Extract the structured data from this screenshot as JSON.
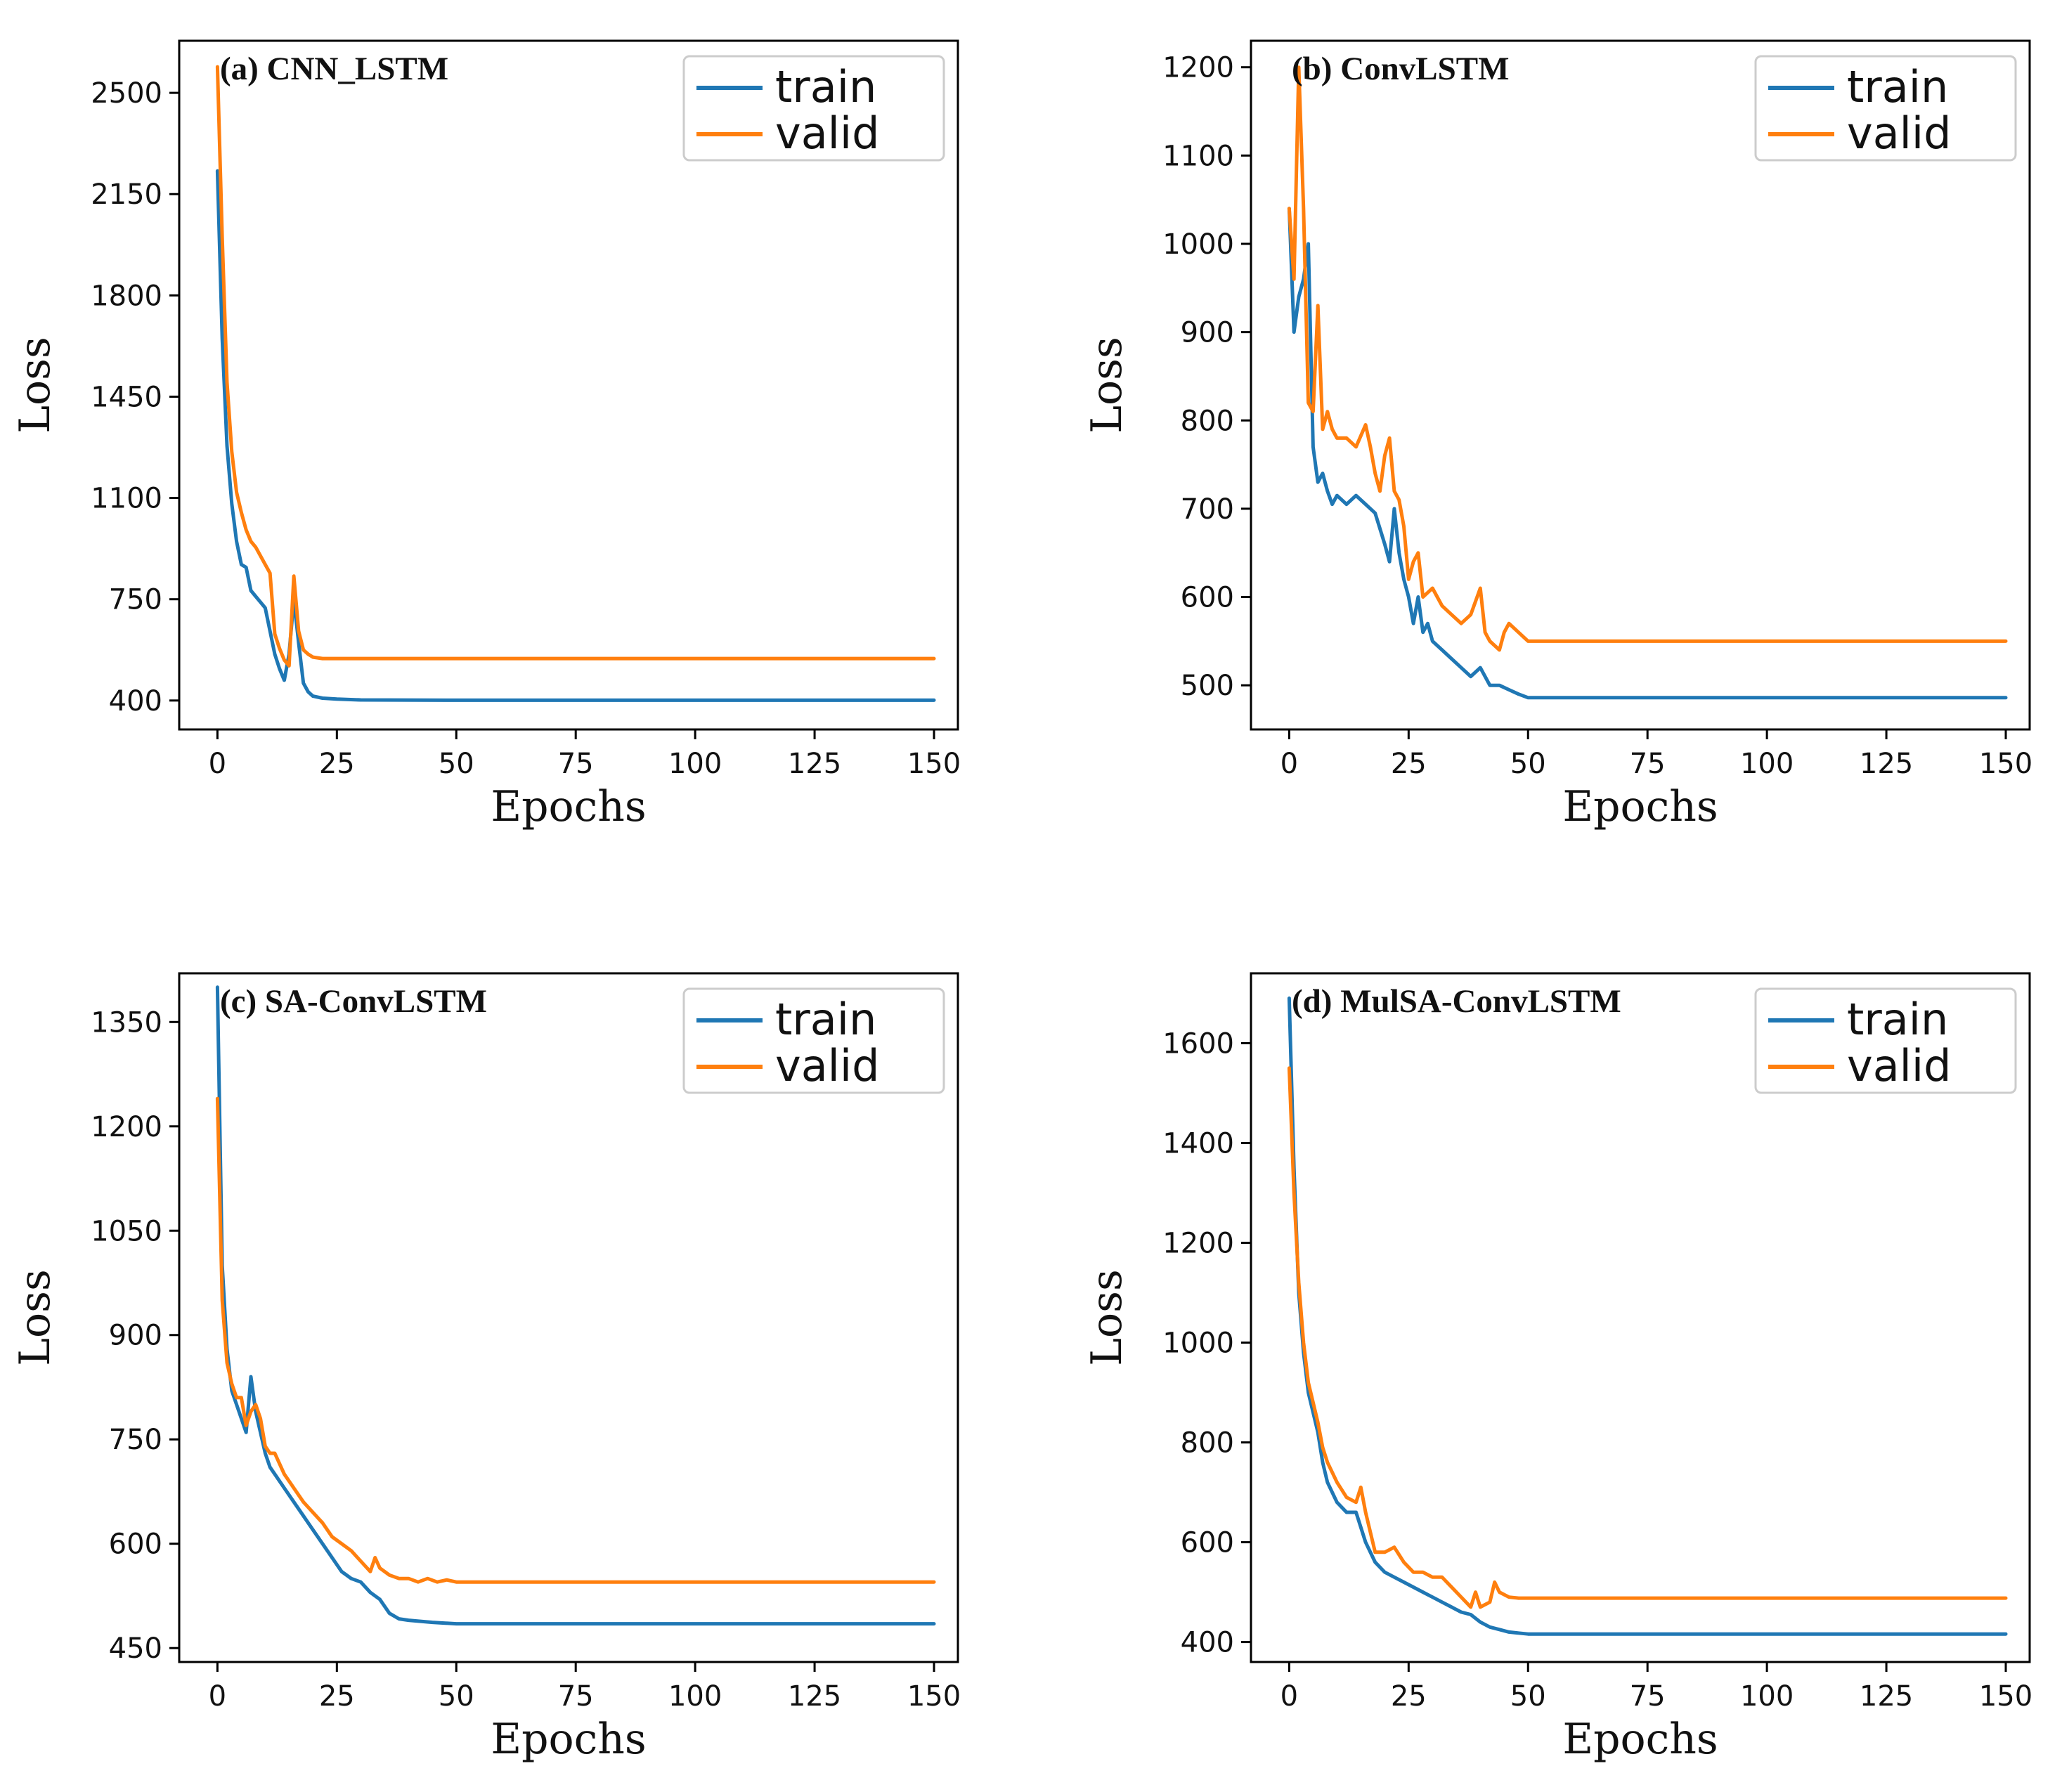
{
  "colors": {
    "train": "#1f77b4",
    "valid": "#ff7f0e"
  },
  "chart_data": [
    {
      "type": "line",
      "title": "(a) CNN_LSTM",
      "xlabel": "Epochs",
      "ylabel": "Loss",
      "xlim": [
        -8,
        155
      ],
      "ylim": [
        300,
        2680
      ],
      "xticks": [
        0,
        25,
        50,
        75,
        100,
        125,
        150
      ],
      "yticks": [
        400,
        750,
        1100,
        1450,
        1800,
        2150,
        2500
      ],
      "legend": "top-right",
      "grid": false,
      "series": [
        {
          "name": "train",
          "color": "#1f77b4",
          "x": [
            0,
            1,
            2,
            3,
            4,
            5,
            6,
            7,
            8,
            9,
            10,
            11,
            12,
            13,
            14,
            15,
            16,
            17,
            18,
            19,
            20,
            22,
            25,
            30,
            50,
            100,
            150
          ],
          "y": [
            2230,
            1650,
            1280,
            1080,
            950,
            870,
            860,
            780,
            760,
            740,
            720,
            640,
            560,
            510,
            470,
            560,
            750,
            600,
            460,
            430,
            415,
            408,
            405,
            402,
            401,
            401,
            401
          ]
        },
        {
          "name": "valid",
          "color": "#ff7f0e",
          "x": [
            0,
            1,
            2,
            3,
            4,
            5,
            6,
            7,
            8,
            9,
            10,
            11,
            12,
            13,
            14,
            15,
            16,
            17,
            18,
            19,
            20,
            22,
            25,
            30,
            50,
            100,
            150
          ],
          "y": [
            2590,
            2000,
            1500,
            1260,
            1120,
            1050,
            990,
            950,
            930,
            900,
            870,
            840,
            630,
            580,
            540,
            520,
            830,
            640,
            575,
            560,
            550,
            545,
            545,
            545,
            545,
            545,
            545
          ]
        }
      ]
    },
    {
      "type": "line",
      "title": "(b) ConvLSTM",
      "xlabel": "Epochs",
      "ylabel": "Loss",
      "xlim": [
        -8,
        155
      ],
      "ylim": [
        450,
        1230
      ],
      "xticks": [
        0,
        25,
        50,
        75,
        100,
        125,
        150
      ],
      "yticks": [
        500,
        600,
        700,
        800,
        900,
        1000,
        1100,
        1200
      ],
      "legend": "top-right",
      "grid": false,
      "series": [
        {
          "name": "train",
          "color": "#1f77b4",
          "x": [
            0,
            1,
            2,
            3,
            4,
            5,
            6,
            7,
            8,
            9,
            10,
            12,
            14,
            16,
            18,
            20,
            21,
            22,
            23,
            24,
            25,
            26,
            27,
            28,
            29,
            30,
            32,
            34,
            36,
            38,
            40,
            42,
            44,
            46,
            48,
            50,
            52,
            60,
            100,
            150
          ],
          "y": [
            1040,
            900,
            940,
            960,
            1000,
            770,
            730,
            740,
            720,
            705,
            715,
            705,
            715,
            705,
            695,
            660,
            640,
            700,
            650,
            620,
            600,
            570,
            600,
            560,
            570,
            550,
            540,
            530,
            520,
            510,
            520,
            500,
            500,
            495,
            490,
            486,
            486,
            486,
            486,
            486
          ]
        },
        {
          "name": "valid",
          "color": "#ff7f0e",
          "x": [
            0,
            1,
            2,
            3,
            4,
            5,
            6,
            7,
            8,
            9,
            10,
            12,
            14,
            16,
            17,
            18,
            19,
            20,
            21,
            22,
            23,
            24,
            25,
            26,
            27,
            28,
            30,
            32,
            34,
            36,
            38,
            40,
            41,
            42,
            44,
            45,
            46,
            48,
            50,
            52,
            60,
            100,
            150
          ],
          "y": [
            1040,
            960,
            1200,
            1040,
            820,
            810,
            930,
            790,
            810,
            790,
            780,
            780,
            770,
            795,
            770,
            740,
            720,
            760,
            780,
            720,
            710,
            680,
            620,
            640,
            650,
            600,
            610,
            590,
            580,
            570,
            580,
            610,
            560,
            550,
            540,
            560,
            570,
            560,
            550,
            550,
            550,
            550,
            550
          ]
        }
      ]
    },
    {
      "type": "line",
      "title": "(c) SA-ConvLSTM",
      "xlabel": "Epochs",
      "ylabel": "Loss",
      "xlim": [
        -8,
        155
      ],
      "ylim": [
        430,
        1420
      ],
      "xticks": [
        0,
        25,
        50,
        75,
        100,
        125,
        150
      ],
      "yticks": [
        450,
        600,
        750,
        900,
        1050,
        1200,
        1350
      ],
      "legend": "top-right",
      "grid": false,
      "series": [
        {
          "name": "train",
          "color": "#1f77b4",
          "x": [
            0,
            1,
            2,
            3,
            4,
            5,
            6,
            7,
            8,
            9,
            10,
            11,
            12,
            14,
            16,
            18,
            20,
            22,
            24,
            26,
            28,
            30,
            32,
            34,
            36,
            38,
            40,
            45,
            50,
            60,
            100,
            150
          ],
          "y": [
            1400,
            1000,
            880,
            820,
            800,
            780,
            760,
            840,
            790,
            760,
            730,
            710,
            700,
            680,
            660,
            640,
            620,
            600,
            580,
            560,
            550,
            545,
            530,
            520,
            500,
            492,
            490,
            487,
            485,
            485,
            485,
            485
          ]
        },
        {
          "name": "valid",
          "color": "#ff7f0e",
          "x": [
            0,
            1,
            2,
            3,
            4,
            5,
            6,
            7,
            8,
            9,
            10,
            11,
            12,
            14,
            16,
            18,
            20,
            22,
            24,
            26,
            28,
            30,
            32,
            33,
            34,
            36,
            38,
            40,
            42,
            44,
            46,
            48,
            50,
            60,
            100,
            150
          ],
          "y": [
            1240,
            950,
            860,
            830,
            810,
            810,
            770,
            790,
            800,
            780,
            740,
            730,
            730,
            700,
            680,
            660,
            645,
            630,
            610,
            600,
            590,
            575,
            560,
            580,
            565,
            555,
            550,
            550,
            545,
            550,
            545,
            548,
            545,
            545,
            545,
            545
          ]
        }
      ]
    },
    {
      "type": "line",
      "title": "(d) MulSA-ConvLSTM",
      "xlabel": "Epochs",
      "ylabel": "Loss",
      "xlim": [
        -8,
        155
      ],
      "ylim": [
        360,
        1740
      ],
      "xticks": [
        0,
        25,
        50,
        75,
        100,
        125,
        150
      ],
      "yticks": [
        400,
        600,
        800,
        1000,
        1200,
        1400,
        1600
      ],
      "legend": "top-right",
      "grid": false,
      "series": [
        {
          "name": "train",
          "color": "#1f77b4",
          "x": [
            0,
            1,
            2,
            3,
            4,
            5,
            6,
            7,
            8,
            9,
            10,
            12,
            14,
            16,
            17,
            18,
            20,
            22,
            24,
            26,
            28,
            30,
            32,
            34,
            36,
            38,
            40,
            42,
            44,
            46,
            48,
            50,
            60,
            100,
            150
          ],
          "y": [
            1690,
            1350,
            1100,
            980,
            900,
            860,
            820,
            760,
            720,
            700,
            680,
            660,
            660,
            600,
            580,
            560,
            540,
            530,
            520,
            510,
            500,
            490,
            480,
            470,
            460,
            455,
            440,
            430,
            425,
            420,
            418,
            416,
            416,
            416,
            416
          ]
        },
        {
          "name": "valid",
          "color": "#ff7f0e",
          "x": [
            0,
            1,
            2,
            3,
            4,
            5,
            6,
            7,
            8,
            9,
            10,
            12,
            14,
            15,
            16,
            18,
            20,
            22,
            24,
            26,
            28,
            30,
            32,
            34,
            36,
            38,
            39,
            40,
            42,
            43,
            44,
            46,
            48,
            50,
            60,
            100,
            150
          ],
          "y": [
            1550,
            1300,
            1120,
            1000,
            920,
            880,
            840,
            790,
            760,
            740,
            720,
            690,
            680,
            710,
            660,
            580,
            580,
            590,
            560,
            540,
            540,
            530,
            530,
            510,
            490,
            470,
            500,
            470,
            480,
            520,
            500,
            490,
            488,
            488,
            488,
            488,
            488
          ]
        }
      ]
    }
  ]
}
